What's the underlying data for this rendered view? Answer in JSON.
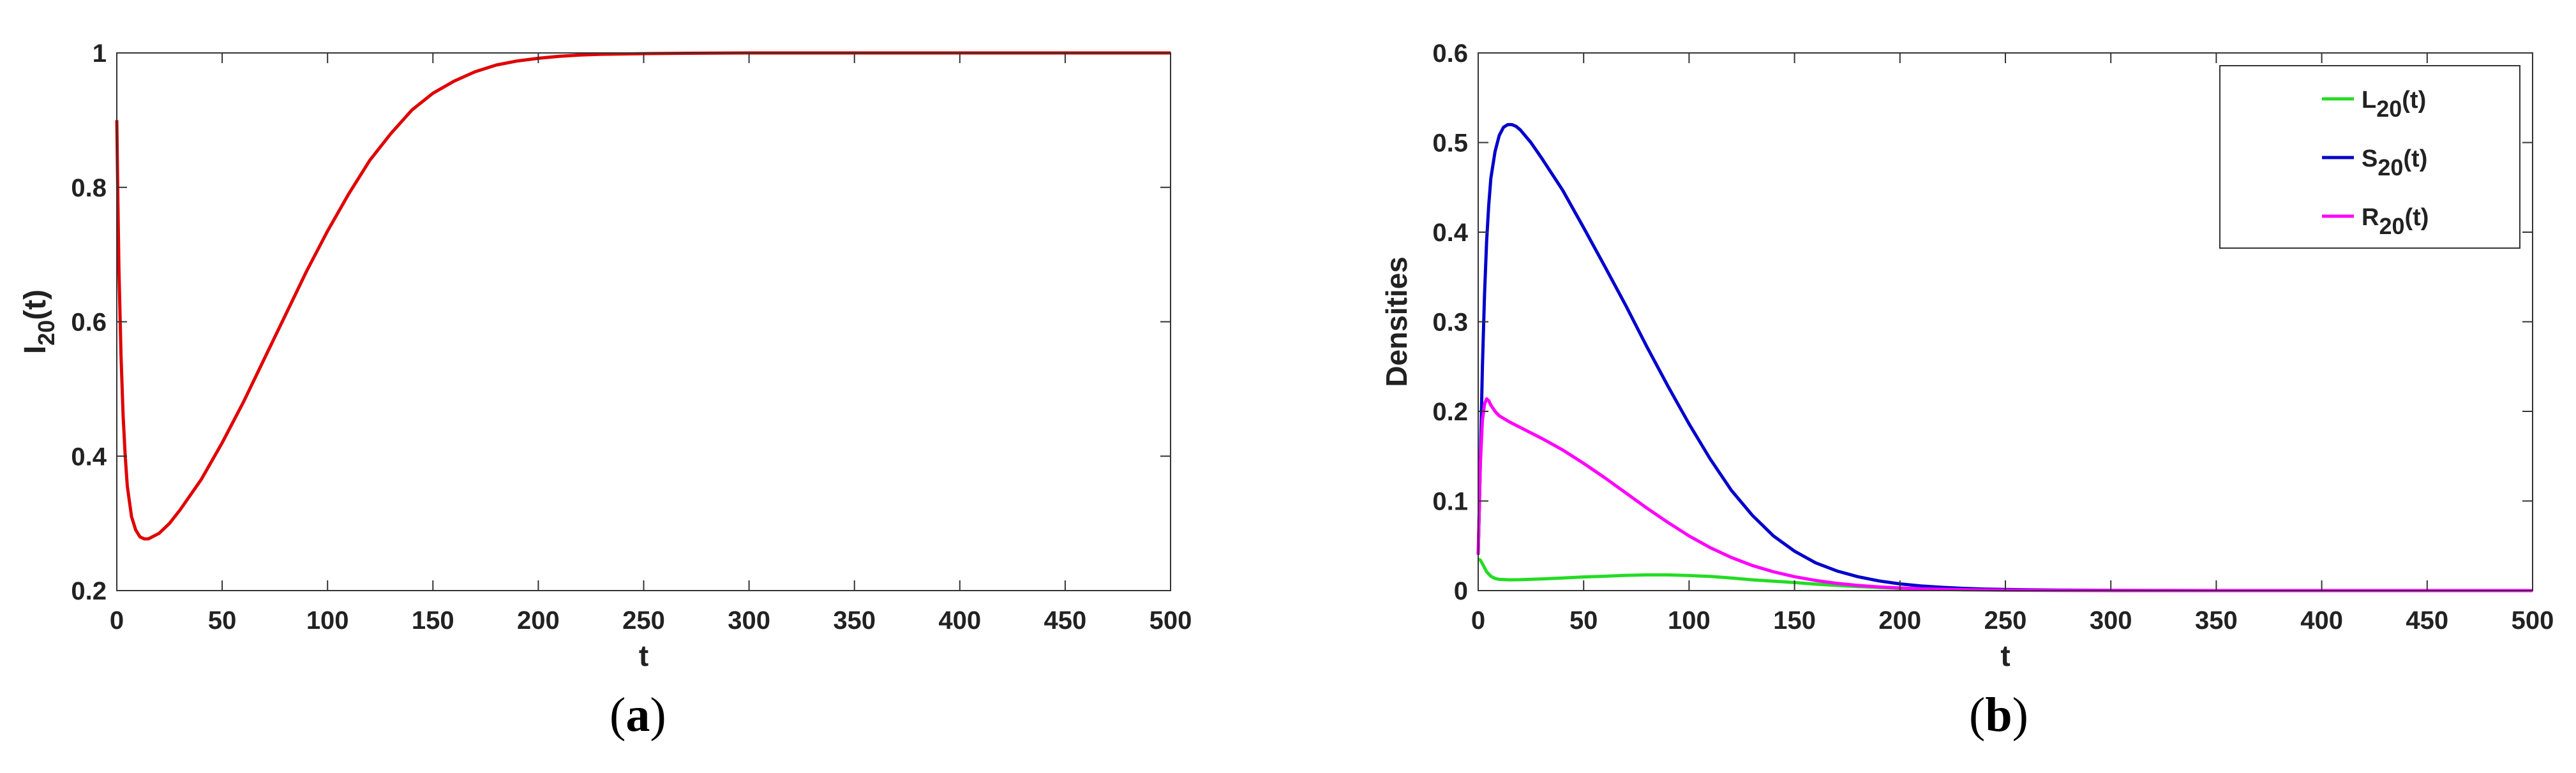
{
  "panels": [
    {
      "label_open": "(",
      "label_letter": "a",
      "label_close": ")"
    },
    {
      "label_open": "(",
      "label_letter": "b",
      "label_close": ")"
    }
  ],
  "chart_data": [
    {
      "type": "line",
      "xlabel": "t",
      "ylabel_base": "I",
      "ylabel_sub": "20",
      "ylabel_suffix": "(t)",
      "xlim": [
        0,
        500
      ],
      "ylim": [
        0.2,
        1
      ],
      "xticks": [
        0,
        50,
        100,
        150,
        200,
        250,
        300,
        350,
        400,
        450,
        500
      ],
      "yticks": [
        0.2,
        0.4,
        0.6,
        0.8,
        1
      ],
      "ytick_labels": [
        "0.2",
        "0.4",
        "0.6",
        "0.8",
        "1"
      ],
      "grid": false,
      "series": [
        {
          "color": "#e00000",
          "x": [
            0,
            0.5,
            1,
            2,
            3,
            4,
            5,
            7,
            9,
            11,
            13,
            15,
            20,
            25,
            30,
            40,
            50,
            60,
            70,
            80,
            90,
            100,
            110,
            120,
            130,
            140,
            150,
            160,
            170,
            180,
            190,
            200,
            210,
            220,
            230,
            240,
            250,
            270,
            300,
            350,
            400,
            450,
            500
          ],
          "y": [
            0.9,
            0.78,
            0.68,
            0.55,
            0.46,
            0.4,
            0.355,
            0.31,
            0.29,
            0.28,
            0.277,
            0.277,
            0.285,
            0.3,
            0.32,
            0.365,
            0.42,
            0.48,
            0.545,
            0.61,
            0.675,
            0.735,
            0.79,
            0.84,
            0.88,
            0.915,
            0.94,
            0.958,
            0.972,
            0.982,
            0.988,
            0.992,
            0.995,
            0.997,
            0.998,
            0.9985,
            0.999,
            0.9995,
            1.0,
            1.0,
            1.0,
            1.0,
            1.0
          ]
        }
      ]
    },
    {
      "type": "line",
      "xlabel": "t",
      "ylabel": "Densities",
      "xlim": [
        0,
        500
      ],
      "ylim": [
        0,
        0.6
      ],
      "xticks": [
        0,
        50,
        100,
        150,
        200,
        250,
        300,
        350,
        400,
        450,
        500
      ],
      "yticks": [
        0,
        0.1,
        0.2,
        0.3,
        0.4,
        0.5,
        0.6
      ],
      "ytick_labels": [
        "0",
        "0.1",
        "0.2",
        "0.3",
        "0.4",
        "0.5",
        "0.6"
      ],
      "grid": false,
      "legend": "top-right",
      "series": [
        {
          "base": "L",
          "sub": "20",
          "suffix": "(t)",
          "color": "#22dd22",
          "x": [
            0,
            1,
            2,
            4,
            6,
            8,
            10,
            15,
            20,
            30,
            40,
            50,
            60,
            70,
            80,
            90,
            100,
            110,
            120,
            130,
            140,
            150,
            160,
            170,
            180,
            190,
            200,
            210,
            220,
            230,
            250,
            300,
            350,
            400,
            450,
            500
          ],
          "y": [
            0.035,
            0.034,
            0.03,
            0.021,
            0.016,
            0.0135,
            0.0125,
            0.012,
            0.0122,
            0.013,
            0.014,
            0.0152,
            0.016,
            0.017,
            0.0175,
            0.0175,
            0.0168,
            0.0158,
            0.014,
            0.012,
            0.0105,
            0.009,
            0.0072,
            0.0058,
            0.0045,
            0.0035,
            0.0025,
            0.0018,
            0.0012,
            0.0008,
            0.0004,
            0.0001,
            2e-05,
            0,
            0,
            0
          ]
        },
        {
          "base": "S",
          "sub": "20",
          "suffix": "(t)",
          "color": "#0000cc",
          "x": [
            0,
            1,
            2,
            3,
            4,
            5,
            6,
            8,
            10,
            12,
            14,
            16,
            18,
            20,
            25,
            30,
            40,
            50,
            60,
            70,
            80,
            90,
            100,
            110,
            120,
            130,
            140,
            150,
            160,
            170,
            180,
            190,
            200,
            210,
            220,
            230,
            240,
            250,
            275,
            300,
            350,
            400,
            450,
            500
          ],
          "y": [
            0.04,
            0.14,
            0.25,
            0.33,
            0.39,
            0.43,
            0.46,
            0.49,
            0.508,
            0.517,
            0.52,
            0.52,
            0.518,
            0.514,
            0.5,
            0.483,
            0.447,
            0.405,
            0.362,
            0.318,
            0.272,
            0.228,
            0.186,
            0.147,
            0.112,
            0.084,
            0.061,
            0.044,
            0.031,
            0.022,
            0.0155,
            0.0108,
            0.0075,
            0.0052,
            0.0036,
            0.0025,
            0.0017,
            0.0012,
            0.0005,
            0.0002,
            3e-05,
            0,
            0,
            0
          ]
        },
        {
          "base": "R",
          "sub": "20",
          "suffix": "(t)",
          "color": "#ff00ff",
          "x": [
            0,
            1,
            2,
            3,
            4,
            5,
            6,
            8,
            10,
            15,
            20,
            30,
            40,
            50,
            60,
            70,
            80,
            90,
            100,
            110,
            120,
            130,
            140,
            150,
            160,
            170,
            180,
            190,
            200,
            210,
            220,
            230,
            240,
            250,
            275,
            300,
            350,
            400,
            450,
            500
          ],
          "y": [
            0.04,
            0.14,
            0.19,
            0.208,
            0.214,
            0.212,
            0.207,
            0.2,
            0.195,
            0.188,
            0.182,
            0.17,
            0.157,
            0.142,
            0.126,
            0.109,
            0.092,
            0.076,
            0.061,
            0.048,
            0.037,
            0.028,
            0.021,
            0.0155,
            0.0113,
            0.0081,
            0.0058,
            0.0041,
            0.0029,
            0.002,
            0.0014,
            0.001,
            0.0007,
            0.0005,
            0.0002,
            0.0001,
            1e-05,
            0,
            0,
            0
          ]
        }
      ]
    }
  ]
}
